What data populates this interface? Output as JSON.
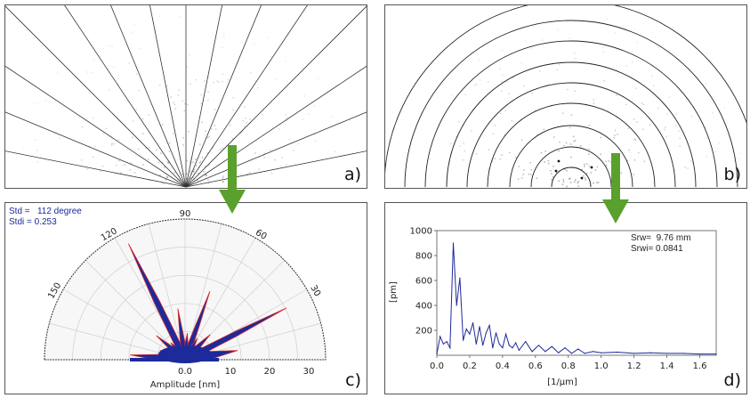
{
  "panels": {
    "a": {
      "label": "a)"
    },
    "b": {
      "label": "b)"
    },
    "c": {
      "label": "c)",
      "std_line": "Std =   112 degree",
      "stdi_line": "Stdi = 0.253",
      "angle_labels": [
        "90",
        "120",
        "60",
        "150",
        "30"
      ],
      "x_ticks": [
        "0.0",
        "10",
        "20",
        "30"
      ],
      "x_axis_label": "Amplitude [nm]"
    },
    "d": {
      "label": "d)",
      "srw_line": "Srw=  9.76 mm",
      "srwi_line": "Srwi= 0.0841",
      "y_axis_label": "[pm]",
      "x_axis_label": "[1/μm]"
    }
  },
  "colors": {
    "arrow": "#5aa02c",
    "rose_fill": "#1d2a9c",
    "rose_edge": "#d42a2a",
    "stats_text": "#1a2a9a",
    "spectrum": "#1d2a9c"
  },
  "chart_data": {
    "type": "line",
    "x": [
      0.0,
      0.02,
      0.04,
      0.06,
      0.08,
      0.1,
      0.12,
      0.14,
      0.16,
      0.18,
      0.2,
      0.22,
      0.24,
      0.26,
      0.28,
      0.3,
      0.32,
      0.34,
      0.36,
      0.38,
      0.4,
      0.42,
      0.44,
      0.46,
      0.48,
      0.5,
      0.54,
      0.58,
      0.62,
      0.66,
      0.7,
      0.74,
      0.78,
      0.82,
      0.86,
      0.9,
      0.95,
      1.0,
      1.1,
      1.2,
      1.3,
      1.4,
      1.5,
      1.6,
      1.7
    ],
    "values": [
      10,
      150,
      90,
      110,
      60,
      900,
      400,
      620,
      120,
      210,
      170,
      260,
      90,
      230,
      80,
      180,
      240,
      60,
      180,
      90,
      60,
      170,
      80,
      60,
      100,
      40,
      110,
      30,
      80,
      30,
      70,
      20,
      60,
      15,
      50,
      15,
      30,
      20,
      25,
      15,
      20,
      15,
      15,
      10,
      10
    ],
    "xlim": [
      0.0,
      1.7
    ],
    "ylim": [
      0,
      1000
    ],
    "x_ticks": [
      0.0,
      0.2,
      0.4,
      0.6,
      0.8,
      1.0,
      1.2,
      1.4,
      1.6
    ],
    "y_ticks": [
      200,
      400,
      600,
      800,
      1000
    ],
    "grid": false,
    "xlabel": "[1/μm]",
    "ylabel": "[pm]"
  }
}
